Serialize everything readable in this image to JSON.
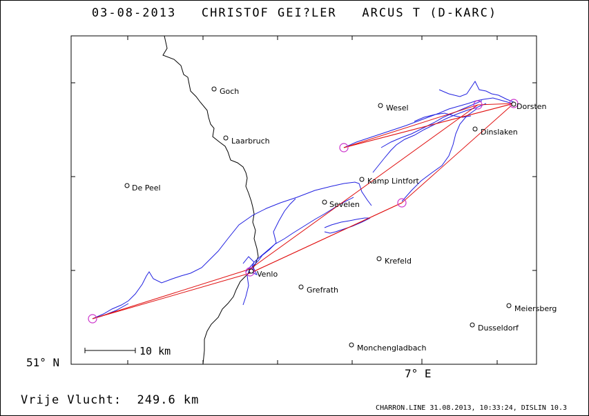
{
  "title": "03-08-2013   CHRISTOF GEI?LER   ARCUS T (D-KARC)",
  "footer": {
    "distance_label": "Vrije Vlucht:  249.6 km",
    "credits": "CHARRON.LINE 31.08.2013, 10:33:24, DISLIN 10.3"
  },
  "axes": {
    "lat_label": "51° N",
    "lon_label": "7° E"
  },
  "scale_bar": {
    "label": "10 km"
  },
  "colors": {
    "track": "#1f1fe0",
    "task": "#e01010",
    "turnpoint": "#cc33cc",
    "border": "#000000"
  },
  "places": [
    {
      "name": "Goch"
    },
    {
      "name": "Laarbruch"
    },
    {
      "name": "Wesel"
    },
    {
      "name": "Dorsten"
    },
    {
      "name": "Dinslaken"
    },
    {
      "name": "De Peel"
    },
    {
      "name": "Kamp Lintfort"
    },
    {
      "name": "Sevelen"
    },
    {
      "name": "Venlo"
    },
    {
      "name": "Krefeld"
    },
    {
      "name": "Grefrath"
    },
    {
      "name": "Meiersberg"
    },
    {
      "name": "Dusseldorf"
    },
    {
      "name": "Monchengladbach"
    }
  ]
}
